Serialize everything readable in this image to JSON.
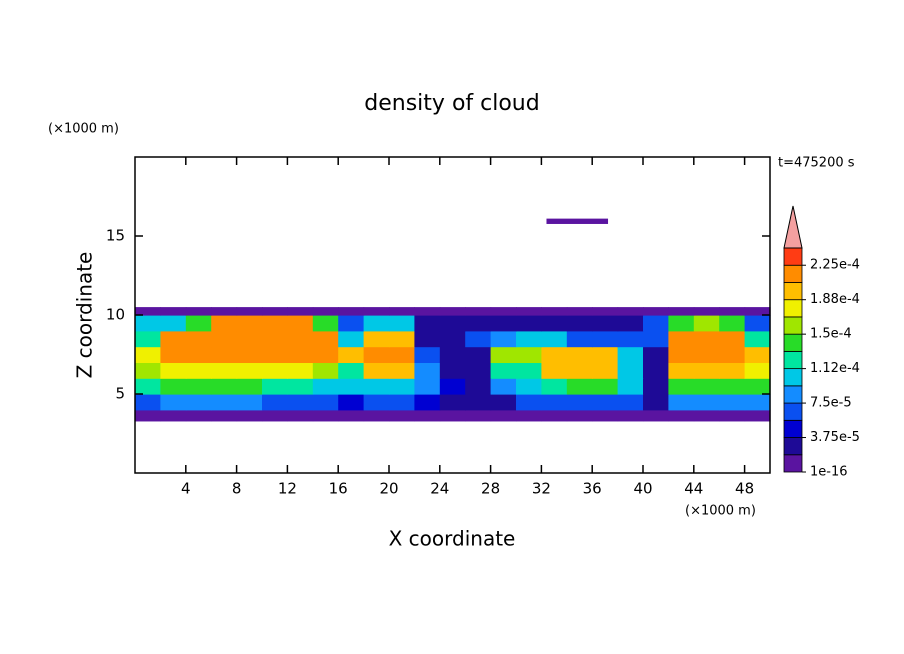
{
  "chart_data": {
    "type": "contour",
    "title": "density of cloud",
    "x_label": "X coordinate",
    "y_label": "Z coordinate",
    "x_unit": "(×1000 m)",
    "y_unit": "(×1000 m)",
    "time_label": "t=475200 s",
    "xlim": [
      0,
      50
    ],
    "ylim": [
      0,
      20
    ],
    "xticks": [
      4,
      8,
      12,
      16,
      20,
      24,
      28,
      32,
      36,
      40,
      44,
      48
    ],
    "yticks": [
      5,
      10,
      15
    ],
    "levels": [
      1e-16,
      1.875e-05,
      3.75e-05,
      5.625e-05,
      7.5e-05,
      9.375e-05,
      0.0001125,
      0.00013125,
      0.00015,
      0.00016875,
      0.0001875,
      0.00020625,
      0.000225,
      0.00024375
    ],
    "colors": [
      "#5a14a0",
      "#1e0a96",
      "#0000d2",
      "#0a50f0",
      "#148cff",
      "#00c8e6",
      "#00e6a0",
      "#28dc28",
      "#a0e600",
      "#f0f000",
      "#ffbe00",
      "#ff8c00",
      "#ff3c14"
    ],
    "over_color": "#f4a0a0",
    "colorbar_ticks": [
      {
        "value": 1e-16,
        "label": "1e-16"
      },
      {
        "value": 3.75e-05,
        "label": "3.75e-5"
      },
      {
        "value": 7.5e-05,
        "label": "7.5e-5"
      },
      {
        "value": 0.0001125,
        "label": "1.12e-4"
      },
      {
        "value": 0.00015,
        "label": "1.5e-4"
      },
      {
        "value": 0.0001875,
        "label": "1.88e-4"
      },
      {
        "value": 0.000225,
        "label": "2.25e-4"
      }
    ],
    "fields": [
      {
        "x_edges": [
          0,
          2,
          4,
          6,
          8,
          10,
          12,
          14,
          16,
          18,
          20,
          22,
          24,
          26,
          28,
          30,
          32,
          34,
          36,
          38,
          40,
          42,
          44,
          46,
          48,
          50
        ],
        "z_edges": [
          3.3,
          4,
          5,
          6,
          7,
          8,
          9,
          10,
          10.5
        ],
        "values": [
          [
            5e-06,
            5e-06,
            5e-06,
            5e-06,
            5e-06,
            5e-06,
            5e-06,
            5e-06,
            5e-06,
            5e-06,
            5e-06,
            5e-06,
            5e-06,
            5e-06,
            5e-06,
            5e-06,
            5e-06,
            5e-06,
            5e-06,
            5e-06,
            5e-06,
            5e-06,
            5e-06,
            5e-06,
            5e-06
          ],
          [
            6e-05,
            8e-05,
            8e-05,
            8e-05,
            8e-05,
            6e-05,
            6e-05,
            6e-05,
            5e-05,
            6e-05,
            6e-05,
            4e-05,
            3e-05,
            2e-05,
            3e-05,
            6e-05,
            6e-05,
            6e-05,
            6e-05,
            6e-05,
            2e-05,
            8e-05,
            8e-05,
            8e-05,
            8e-05
          ],
          [
            0.00012,
            0.00014,
            0.00014,
            0.00014,
            0.00014,
            0.00013,
            0.00012,
            0.0001,
            0.0001,
            0.00011,
            0.00011,
            8e-05,
            4e-05,
            3e-05,
            8e-05,
            0.0001,
            0.00013,
            0.00014,
            0.00014,
            0.00011,
            3e-05,
            0.00014,
            0.00014,
            0.00014,
            0.00014
          ],
          [
            0.00016,
            0.00018,
            0.00018,
            0.00018,
            0.00018,
            0.00018,
            0.00018,
            0.00016,
            0.00013,
            0.00019,
            0.00019,
            8e-05,
            3e-05,
            3e-05,
            0.00013,
            0.00013,
            0.00019,
            0.00019,
            0.00019,
            0.0001,
            3e-05,
            0.00019,
            0.00019,
            0.00019,
            0.00018
          ],
          [
            0.00017,
            0.00021,
            0.00021,
            0.00021,
            0.00021,
            0.00021,
            0.00021,
            0.00021,
            0.0002,
            0.00021,
            0.00021,
            7e-05,
            3e-05,
            3e-05,
            0.00015,
            0.00015,
            0.0002,
            0.0002,
            0.0002,
            0.0001,
            3e-05,
            0.00021,
            0.00021,
            0.00021,
            0.00019
          ],
          [
            0.00012,
            0.00021,
            0.00022,
            0.00022,
            0.00022,
            0.00022,
            0.00022,
            0.00021,
            0.0001,
            0.00019,
            0.00019,
            3e-05,
            3e-05,
            6e-05,
            8e-05,
            0.0001,
            0.0001,
            6e-05,
            6e-05,
            6e-05,
            6e-05,
            0.00021,
            0.00021,
            0.00021,
            0.00012
          ],
          [
            0.0001,
            0.0001,
            0.00014,
            0.00022,
            0.00022,
            0.00022,
            0.00022,
            0.00014,
            6e-05,
            0.0001,
            0.0001,
            3e-05,
            3e-05,
            3e-05,
            3e-05,
            3e-05,
            3e-05,
            3e-05,
            3e-05,
            3e-05,
            6e-05,
            0.00014,
            0.00015,
            0.00014,
            6e-05
          ],
          [
            5e-06,
            5e-06,
            5e-06,
            5e-06,
            5e-06,
            5e-06,
            5e-06,
            5e-06,
            5e-06,
            5e-06,
            5e-06,
            5e-06,
            5e-06,
            5e-06,
            5e-06,
            5e-06,
            5e-06,
            5e-06,
            5e-06,
            5e-06,
            5e-06,
            5e-06,
            5e-06,
            5e-06,
            5e-06
          ]
        ]
      },
      {
        "x_edges": [
          32.4,
          37.2
        ],
        "z_edges": [
          15.8,
          16.1
        ],
        "values": [
          [
            5e-06
          ]
        ]
      }
    ]
  }
}
